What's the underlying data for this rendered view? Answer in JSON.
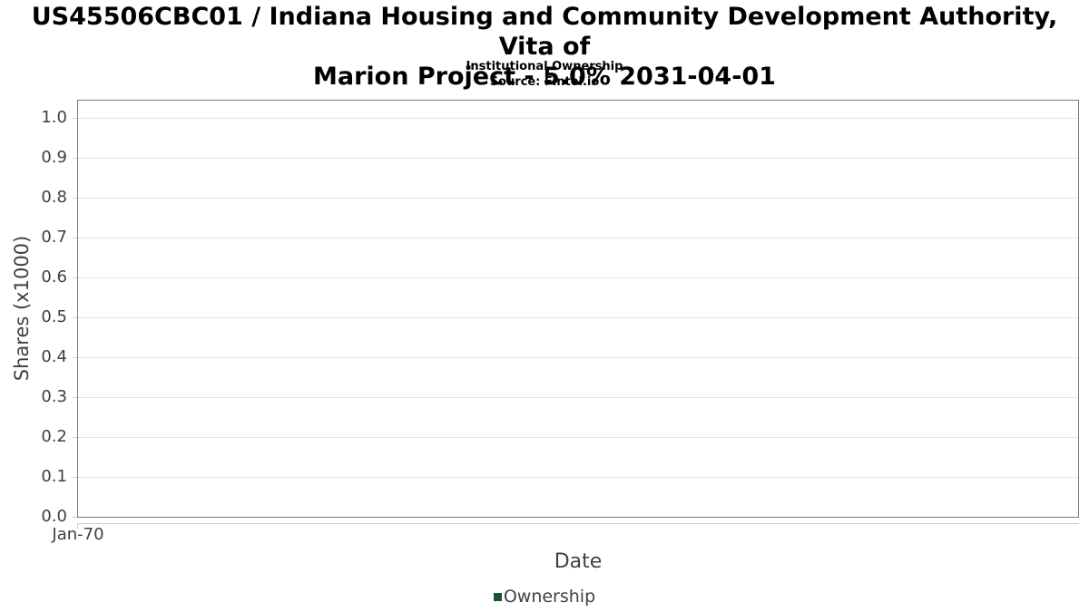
{
  "chart_data": {
    "type": "bar",
    "title": "US45506CBC01 / Indiana Housing and Community Development Authority, Vita of Marion Project - 5.0% 2031-04-01",
    "title_lines": [
      "US45506CBC01 / Indiana Housing and Community Development Authority, Vita of",
      "Marion Project - 5.0% 2031-04-01"
    ],
    "subtitle": "Institutional Ownership",
    "source": "Source: Fintel.io",
    "xlabel": "Date",
    "ylabel": "Shares (x1000)",
    "x_ticks": [
      "Jan-70"
    ],
    "y_ticks": [
      "0.0",
      "0.1",
      "0.2",
      "0.3",
      "0.4",
      "0.5",
      "0.6",
      "0.7",
      "0.8",
      "0.9",
      "1.0"
    ],
    "ylim": [
      0,
      1.045
    ],
    "grid": true,
    "legend_position": "bottom",
    "series": [
      {
        "name": "Ownership",
        "color": "#1b5433",
        "x": [],
        "values": []
      }
    ]
  },
  "colors": {
    "plot_border": "#7b7b7b",
    "gridline": "#e5e5e5",
    "axis_line": "#c9cdd0",
    "tick_text": "#3f3f3f",
    "title_text": "#000000",
    "legend_marker": "#1b5433"
  }
}
